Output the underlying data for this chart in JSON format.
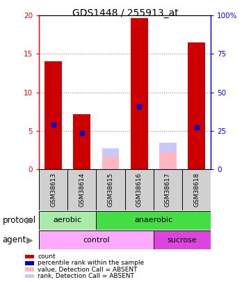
{
  "title": "GDS1448 / 255913_at",
  "samples": [
    "GSM38613",
    "GSM38614",
    "GSM38615",
    "GSM38616",
    "GSM38617",
    "GSM38618"
  ],
  "red_bars": [
    14.0,
    7.2,
    0.0,
    19.7,
    0.0,
    16.5
  ],
  "blue_markers": [
    5.8,
    4.7,
    0.0,
    8.2,
    0.0,
    5.4
  ],
  "pink_bars": [
    0.0,
    0.0,
    1.6,
    0.0,
    2.3,
    0.0
  ],
  "lavender_bars": [
    0.0,
    0.0,
    1.1,
    0.0,
    1.1,
    0.0
  ],
  "ylim_left": [
    0,
    20
  ],
  "ylim_right": [
    0,
    100
  ],
  "yticks_left": [
    0,
    5,
    10,
    15,
    20
  ],
  "yticks_right": [
    0,
    25,
    50,
    75,
    100
  ],
  "ytick_labels_left": [
    "0",
    "5",
    "10",
    "15",
    "20"
  ],
  "ytick_labels_right": [
    "0",
    "25",
    "50",
    "75",
    "100%"
  ],
  "protocol_groups": [
    {
      "label": "aerobic",
      "start": 0,
      "end": 2,
      "color": "#aaeaaa"
    },
    {
      "label": "anaerobic",
      "start": 2,
      "end": 6,
      "color": "#44dd44"
    }
  ],
  "agent_groups": [
    {
      "label": "control",
      "start": 0,
      "end": 4,
      "color": "#ffaaff"
    },
    {
      "label": "sucrose",
      "start": 4,
      "end": 6,
      "color": "#dd44dd"
    }
  ],
  "protocol_label": "protocol",
  "agent_label": "agent",
  "legend_items": [
    {
      "color": "#cc0000",
      "label": "count"
    },
    {
      "color": "#0000cc",
      "label": "percentile rank within the sample"
    },
    {
      "color": "#ffb6c1",
      "label": "value, Detection Call = ABSENT"
    },
    {
      "color": "#c8c8ff",
      "label": "rank, Detection Call = ABSENT"
    }
  ],
  "bar_color": "#cc0000",
  "blue_color": "#0000cc",
  "pink_color": "#ffb6c1",
  "lavender_color": "#c8c8ff",
  "grid_color": "#888888",
  "plot_bg": "#ffffff"
}
